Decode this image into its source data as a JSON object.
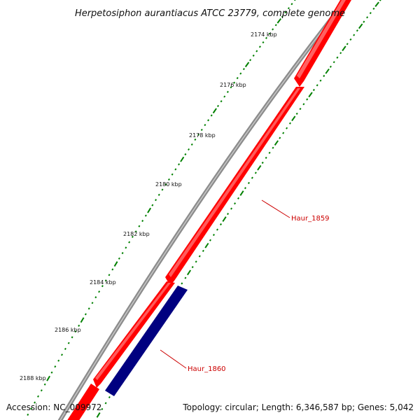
{
  "title": "Herpetosiphon aurantiacus ATCC 23779, complete genome",
  "scale_ticks": [
    {
      "label": "2174 kbp"
    },
    {
      "label": "2176 kbp"
    },
    {
      "label": "2178 kbp"
    },
    {
      "label": "2180 kbp"
    },
    {
      "label": "2182 kbp"
    },
    {
      "label": "2184 kbp"
    },
    {
      "label": "2186 kbp"
    },
    {
      "label": "2188 kbp"
    }
  ],
  "genes": [
    {
      "name": "Haur_1859",
      "strand": "forward",
      "color": "#ff0000"
    },
    {
      "name": "Haur_1860",
      "strand": "reverse",
      "color": "#000080"
    }
  ],
  "colors": {
    "backbone": "#808080",
    "forward_gene": "#ff0000",
    "reverse_gene": "#000080",
    "tick": "#008000",
    "label_leader": "#cc0000"
  },
  "footer": {
    "accession": "Accession: NC_009972",
    "summary": "Topology: circular; Length: 6,346,587 bp; Genes: 5,042"
  }
}
